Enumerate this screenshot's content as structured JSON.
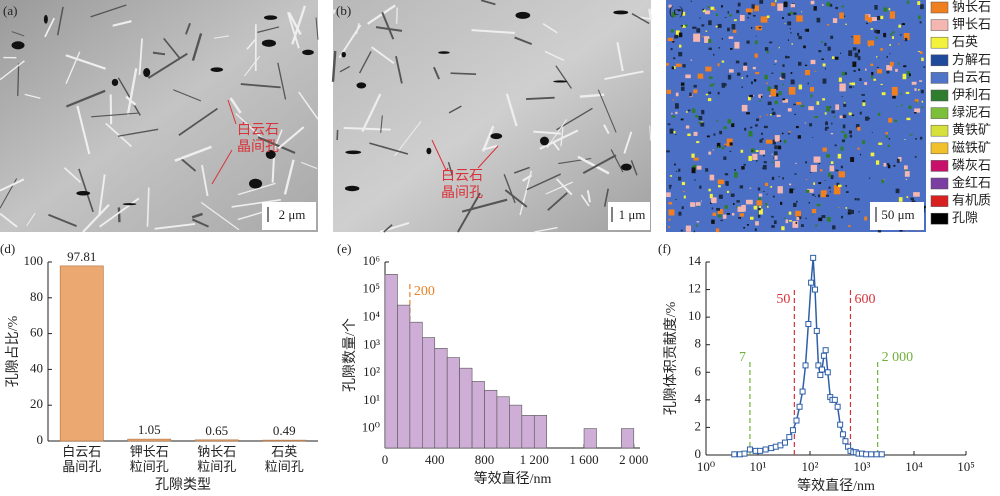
{
  "images": [
    {
      "panel": "(a)",
      "annotation": [
        "白云石",
        "晶间孔"
      ],
      "scale": "2 μm"
    },
    {
      "panel": "(b)",
      "annotation": [
        "白云石",
        "晶间孔"
      ],
      "scale": "1 μm"
    },
    {
      "panel": "(c)",
      "scale": "50 μm",
      "legend": [
        {
          "name": "钠长石",
          "color": "#f07f1f"
        },
        {
          "name": "钾长石",
          "color": "#f4b6b0"
        },
        {
          "name": "石英",
          "color": "#f2f23c"
        },
        {
          "name": "方解石",
          "color": "#1f4a9c"
        },
        {
          "name": "白云石",
          "color": "#4f74c8"
        },
        {
          "name": "伊利石",
          "color": "#2e7d2e"
        },
        {
          "name": "绿泥石",
          "color": "#7cbf3a"
        },
        {
          "name": "黄铁矿",
          "color": "#d6e03a"
        },
        {
          "name": "磁铁矿",
          "color": "#f2c02a"
        },
        {
          "name": "磷灰石",
          "color": "#c8106a"
        },
        {
          "name": "金红石",
          "color": "#7a3fa0"
        },
        {
          "name": "有机质",
          "color": "#d82020"
        },
        {
          "name": "孔隙",
          "color": "#000000"
        }
      ]
    }
  ],
  "chart_data": [
    {
      "type": "bar",
      "panel": "(d)",
      "categories": [
        [
          "白云石",
          "晶间孔"
        ],
        [
          "钾长石",
          "粒间孔"
        ],
        [
          "钠长石",
          "粒间孔"
        ],
        [
          "石英",
          "粒间孔"
        ]
      ],
      "values": [
        97.81,
        1.05,
        0.65,
        0.49
      ],
      "color": "#eba871",
      "ylim": [
        0,
        100
      ],
      "yticks": [
        0,
        20,
        40,
        60,
        80,
        100
      ],
      "ylabel": "孔隙占比/%",
      "xlabel": "孔隙类型"
    },
    {
      "type": "histogram",
      "panel": "(e)",
      "bins": [
        0,
        100,
        200,
        300,
        400,
        500,
        600,
        700,
        800,
        900,
        1000,
        1100,
        1200,
        1300,
        1400,
        1500,
        1600,
        1700,
        1800,
        1900,
        2000
      ],
      "values": [
        360000,
        28000,
        6800,
        1900,
        780,
        360,
        150,
        50,
        24,
        14,
        7,
        3,
        3,
        0,
        0,
        0,
        1,
        0,
        0,
        1
      ],
      "color": "#ceaed6",
      "ylog": true,
      "ylim": [
        0.2,
        1000000
      ],
      "yticks": [
        {
          "value": 1,
          "label": "10⁰"
        },
        {
          "value": 10,
          "label": "10¹"
        },
        {
          "value": 100,
          "label": "10²"
        },
        {
          "value": 1000,
          "label": "10³"
        },
        {
          "value": 10000,
          "label": "10⁴"
        },
        {
          "value": 100000,
          "label": "10⁵"
        },
        {
          "value": 1000000,
          "label": "10⁶"
        }
      ],
      "xlim": [
        0,
        2050
      ],
      "xticks": [
        0,
        400,
        800,
        {
          "value": 1200,
          "label": "1 200"
        },
        {
          "value": 1600,
          "label": "1 600"
        },
        {
          "value": 2000,
          "label": "2 000"
        }
      ],
      "annotations": [
        {
          "x": 200,
          "label": "200",
          "color": "#e8822a"
        }
      ],
      "ylabel": "孔隙数量/个",
      "xlabel": "等效直径/nm"
    },
    {
      "type": "line",
      "panel": "(f)",
      "x": [
        3.5,
        4.5,
        5.5,
        7,
        9,
        11,
        14,
        18,
        22,
        27,
        33,
        40,
        47,
        55,
        63,
        72,
        82,
        93,
        105,
        115,
        125,
        135,
        145,
        158,
        170,
        185,
        200,
        220,
        245,
        270,
        300,
        340,
        380,
        430,
        480,
        540,
        600,
        680,
        760,
        860,
        1000,
        1200,
        1500,
        1900,
        2400
      ],
      "values": [
        0.05,
        0.05,
        0.1,
        0.4,
        0.3,
        0.3,
        0.4,
        0.5,
        0.6,
        0.7,
        0.9,
        1.3,
        1.8,
        2.5,
        3.5,
        4.6,
        6.5,
        9.5,
        12.5,
        14.3,
        12,
        9,
        6.5,
        5.8,
        6.2,
        7.2,
        7.6,
        6,
        4.2,
        4,
        4,
        3.5,
        2.2,
        1.5,
        1,
        0.6,
        0.3,
        0.2,
        0.2,
        0.1,
        0.1,
        0.05,
        0.05,
        0.05,
        0.05
      ],
      "color": "#2f5fa8",
      "xlog": true,
      "xlim": [
        1,
        100000
      ],
      "xticks": [
        {
          "value": 1,
          "label": "10⁰"
        },
        {
          "value": 10,
          "label": "10¹"
        },
        {
          "value": 100,
          "label": "10²"
        },
        {
          "value": 1000,
          "label": "10³"
        },
        {
          "value": 10000,
          "label": "10⁴"
        },
        {
          "value": 100000,
          "label": "10⁵"
        }
      ],
      "ylim": [
        0,
        14
      ],
      "yticks": [
        0,
        2,
        4,
        6,
        8,
        10,
        12,
        14
      ],
      "annotations": [
        {
          "x": 7,
          "label": "7",
          "color": "#72b03c"
        },
        {
          "x": 50,
          "label": "50",
          "color": "#d8323a"
        },
        {
          "x": 600,
          "label": "600",
          "color": "#d8323a"
        },
        {
          "x": 2000,
          "label": "2 000",
          "color": "#72b03c"
        }
      ],
      "ylabel": "孔隙体积贡献度/%",
      "xlabel": "等效直径/nm"
    }
  ]
}
